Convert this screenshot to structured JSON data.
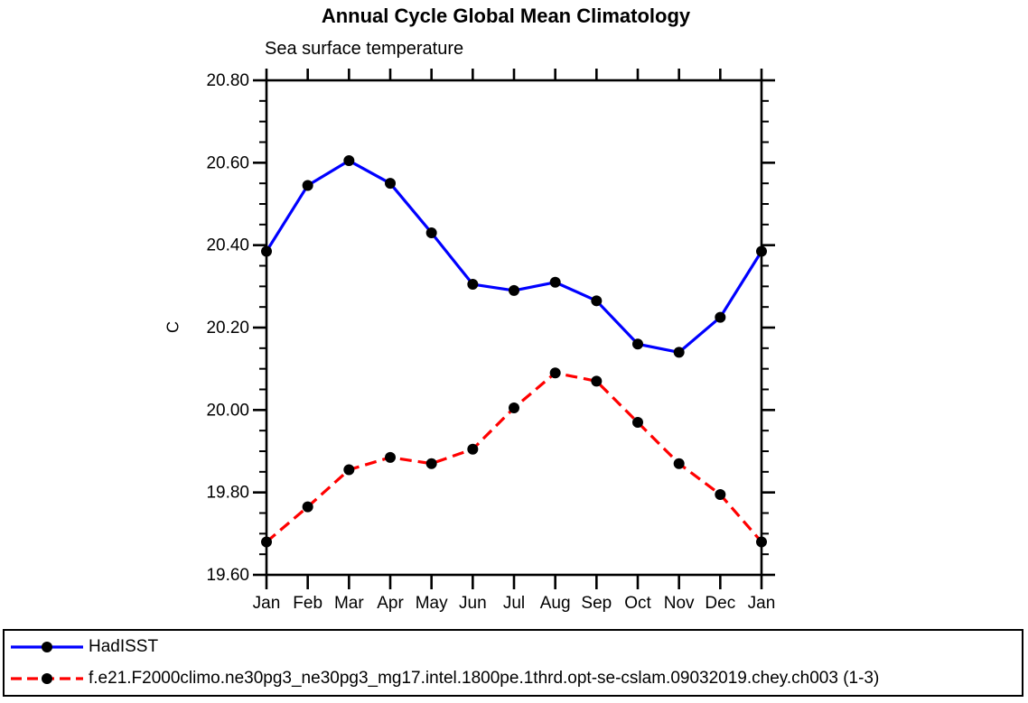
{
  "header": {
    "title": "Annual Cycle Global Mean Climatology",
    "subtitle": "Sea surface temperature"
  },
  "chart_data": {
    "type": "line",
    "title": "Annual Cycle Global Mean Climatology",
    "subtitle": "Sea surface temperature",
    "xlabel": "",
    "ylabel": "C",
    "categories": [
      "Jan",
      "Feb",
      "Mar",
      "Apr",
      "May",
      "Jun",
      "Jul",
      "Aug",
      "Sep",
      "Oct",
      "Nov",
      "Dec",
      "Jan"
    ],
    "ylim": [
      19.6,
      20.8
    ],
    "ytick_major": 0.2,
    "ytick_minor": 0.05,
    "ytick_labels": [
      "19.60",
      "19.80",
      "20.00",
      "20.20",
      "20.40",
      "20.60",
      "20.80"
    ],
    "grid": false,
    "legend_position": "bottom-outside-box",
    "series": [
      {
        "name": "HadISST",
        "color": "#0000ff",
        "line_style": "solid",
        "marker": "circle",
        "marker_color": "#000000",
        "values": [
          20.385,
          20.545,
          20.605,
          20.55,
          20.43,
          20.305,
          20.29,
          20.31,
          20.265,
          20.16,
          20.14,
          20.225,
          20.385
        ]
      },
      {
        "name": "f.e21.F2000climo.ne30pg3_ne30pg3_mg17.intel.1800pe.1thrd.opt-se-cslam.09032019.chey.ch003 (1-3)",
        "color": "#ff0000",
        "line_style": "dashed",
        "marker": "circle",
        "marker_color": "#000000",
        "values": [
          19.68,
          19.765,
          19.855,
          19.885,
          19.87,
          19.905,
          20.005,
          20.09,
          20.07,
          19.97,
          19.87,
          19.795,
          19.68
        ]
      }
    ]
  },
  "legend": {
    "items": [
      {
        "label": "HadISST",
        "color": "#0000ff",
        "line_style": "solid"
      },
      {
        "label": "f.e21.F2000climo.ne30pg3_ne30pg3_mg17.intel.1800pe.1thrd.opt-se-cslam.09032019.chey.ch003 (1-3)",
        "color": "#ff0000",
        "line_style": "dashed"
      }
    ]
  }
}
